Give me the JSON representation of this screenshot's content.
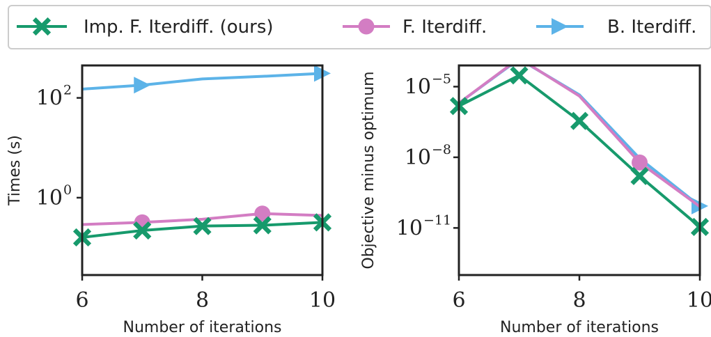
{
  "legend": {
    "entries": [
      {
        "label": "Imp. F. Iterdiff. (ours)",
        "color": "#179a6c",
        "marker": "x-cross"
      },
      {
        "label": "F. Iterdiff.",
        "color": "#d37dc3",
        "marker": "circle"
      },
      {
        "label": "B. Iterdiff.",
        "color": "#5cb3e8",
        "marker": "triangle-right"
      }
    ],
    "placement": "top, spanning both panels"
  },
  "chart_data": [
    {
      "type": "line",
      "title": "",
      "xlabel": "Number of iterations",
      "ylabel": "Times (s)",
      "yscale": "log",
      "xlim": [
        6,
        10
      ],
      "ylim_log10": [
        -1.55,
        2.65
      ],
      "x_ticks": [
        {
          "value": 6,
          "label": "6"
        },
        {
          "value": 8,
          "label": "8"
        },
        {
          "value": 10,
          "label": "10"
        }
      ],
      "y_ticks": [
        {
          "log10": 2,
          "base": "10",
          "exp": "2"
        },
        {
          "log10": 0,
          "base": "10",
          "exp": "0"
        }
      ],
      "grid": false,
      "series": [
        {
          "name": "Imp. F. Iterdiff. (ours)",
          "x": [
            6,
            7,
            8,
            9,
            10
          ],
          "y": [
            0.16,
            0.22,
            0.27,
            0.28,
            0.32
          ],
          "markers_at": [
            6,
            7,
            8,
            9,
            10
          ]
        },
        {
          "name": "F. Iterdiff.",
          "x": [
            6,
            7,
            8,
            9,
            10
          ],
          "y": [
            0.29,
            0.32,
            0.37,
            0.48,
            0.44
          ],
          "markers_at": [
            7,
            9
          ]
        },
        {
          "name": "B. Iterdiff.",
          "x": [
            6,
            7,
            8,
            9,
            10
          ],
          "y": [
            150,
            180,
            240,
            270,
            310
          ],
          "markers_at": [
            7,
            10
          ]
        }
      ]
    },
    {
      "type": "line",
      "title": "",
      "xlabel": "Number of iterations",
      "ylabel": "Objective minus optimum",
      "yscale": "log",
      "xlim": [
        6,
        10
      ],
      "ylim_log10": [
        -13.0,
        -4.1
      ],
      "x_ticks": [
        {
          "value": 6,
          "label": "6"
        },
        {
          "value": 8,
          "label": "8"
        },
        {
          "value": 10,
          "label": "10"
        }
      ],
      "y_ticks": [
        {
          "log10": -5,
          "base": "10",
          "exp": "−5"
        },
        {
          "log10": -8,
          "base": "10",
          "exp": "−8"
        },
        {
          "log10": -11,
          "base": "10",
          "exp": "−11"
        }
      ],
      "grid": false,
      "series": [
        {
          "name": "Imp. F. Iterdiff. (ours)",
          "x": [
            6,
            7,
            8,
            9,
            10
          ],
          "y": [
            1.5e-06,
            3e-05,
            3.5e-07,
            1.6e-09,
            1.1e-11
          ],
          "markers_at": [
            6,
            7,
            8,
            9,
            10
          ]
        },
        {
          "name": "F. Iterdiff.",
          "x": [
            6,
            7,
            8,
            9,
            10
          ],
          "y": [
            2e-06,
            0.00016,
            4e-06,
            6e-09,
            8e-11
          ],
          "markers_at": [
            7,
            9
          ]
        },
        {
          "name": "B. Iterdiff.",
          "x": [
            6,
            7,
            8,
            9,
            10
          ],
          "y": [
            2e-06,
            0.00015,
            4.5e-06,
            9e-09,
            8.5e-11
          ],
          "markers_at": [
            7,
            10
          ]
        }
      ]
    }
  ]
}
